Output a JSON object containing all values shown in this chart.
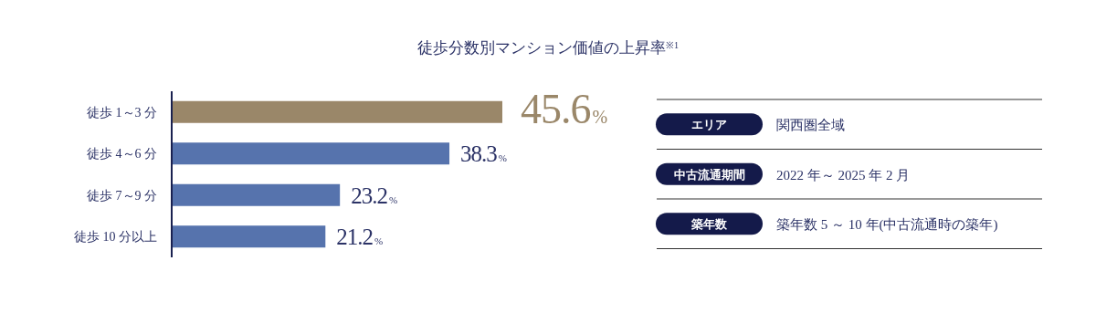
{
  "chart_data": [
    {
      "type": "bar",
      "orientation": "horizontal",
      "title": "徒歩分数別マンション価値の上昇率$^{※1}$",
      "categories": [
        "徒歩 1～3 分",
        "徒歩 4～6 分",
        "徒歩 7～9 分",
        "徒歩 10 分以上"
      ],
      "values": [
        45.6,
        38.3,
        23.2,
        21.2
      ],
      "colors": [
        "#9a8769",
        "#5673ad",
        "#5673ad",
        "#5673ad"
      ],
      "value_labels": [
        "45.6%",
        "38.3%",
        "23.2%",
        "21.2%"
      ]
    },
    {
      "type": "other",
      "annotations": [
        "エリア",
        "関西圏全域",
        "中古流通期間",
        "2022 年～ 2025 年 2 月",
        "築年数",
        "築年数 5 ～ 10 年(中古流通時の築年)"
      ]
    }
  ]
}
